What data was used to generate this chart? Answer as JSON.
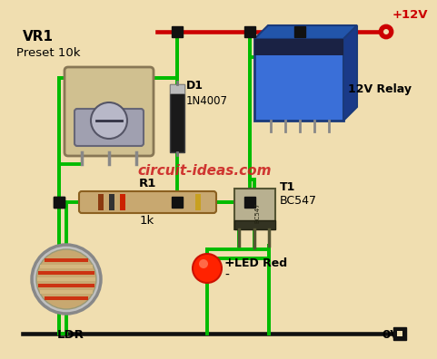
{
  "bg_color": "#f0deb0",
  "wire_green": "#00bb00",
  "wire_red": "#cc0000",
  "wire_black": "#111111",
  "junction_color": "#111111",
  "watermark": "circuit-ideas.com",
  "watermark_color": "#cc2222",
  "labels": {
    "vr1": "VR1",
    "preset": "Preset 10k",
    "d1": "D1",
    "diode_type": "1N4007",
    "r1": "R1",
    "r1_val": "1k",
    "t1": "T1",
    "transistor": "BC547",
    "relay": "12V Relay",
    "led": "LED Red",
    "ldr": "LDR",
    "plus12": "+12V",
    "gnd": "0V",
    "led_plus": "+",
    "led_minus": "-"
  }
}
